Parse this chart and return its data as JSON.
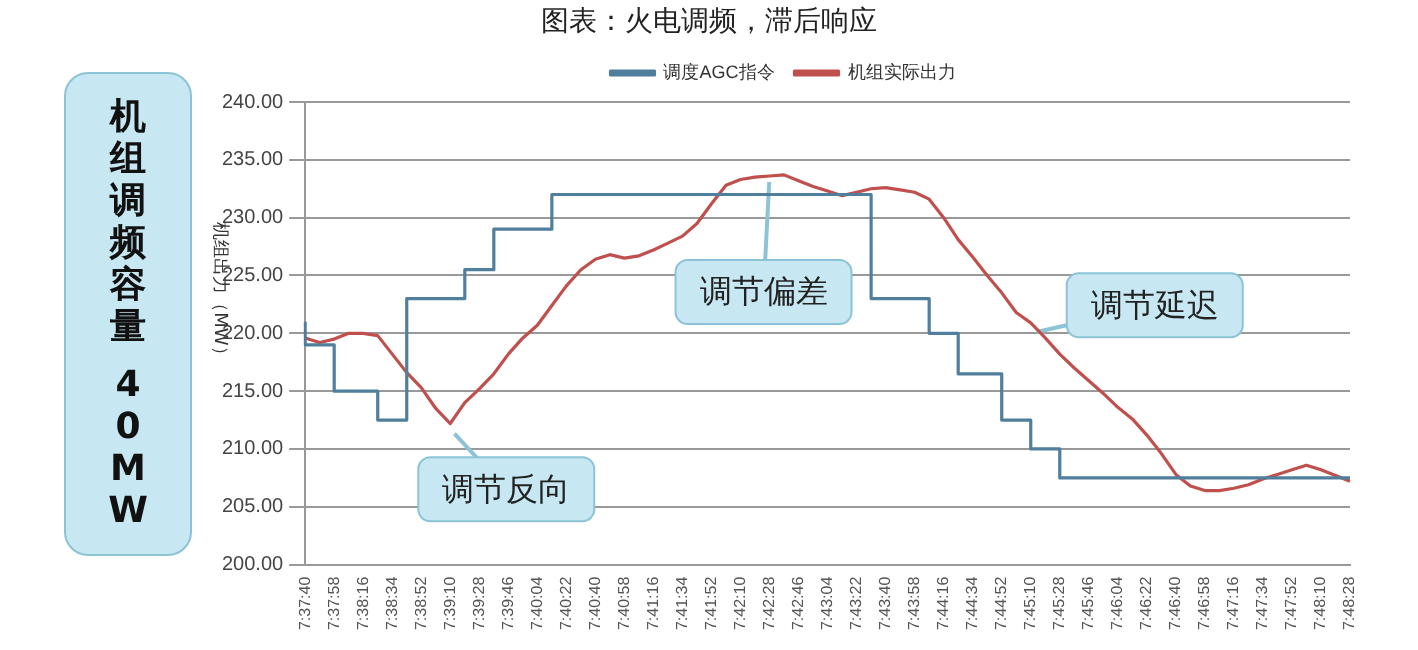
{
  "chart_data": {
    "type": "line",
    "title": "图表：火电调频，滞后响应",
    "ylabel": "机组出力（MW）",
    "categories": [
      "7:37:40",
      null,
      "7:37:58",
      null,
      "7:38:16",
      null,
      "7:38:34",
      null,
      "7:38:52",
      null,
      "7:39:10",
      null,
      "7:39:28",
      null,
      "7:39:46",
      null,
      "7:40:04",
      null,
      "7:40:22",
      null,
      "7:40:40",
      null,
      "7:40:58",
      null,
      "7:41:16",
      null,
      "7:41:34",
      null,
      "7:41:52",
      null,
      "7:42:10",
      null,
      "7:42:28",
      null,
      "7:42:46",
      null,
      "7:43:04",
      null,
      "7:43:22",
      null,
      "7:43:40",
      null,
      "7:43:58",
      null,
      "7:44:16",
      null,
      "7:44:34",
      null,
      "7:44:52",
      null,
      "7:45:10",
      null,
      "7:45:28",
      null,
      "7:45:46",
      null,
      "7:46:04",
      null,
      "7:46:22",
      null,
      "7:46:40",
      null,
      "7:46:58",
      null,
      "7:47:16",
      null,
      "7:47:34",
      null,
      "7:47:52",
      null,
      "7:48:10",
      null,
      "7:48:28"
    ],
    "series": [
      {
        "name": "调度AGC指令",
        "type": "step",
        "color": "#4f7f9c",
        "values": [
          221,
          219,
          219,
          215,
          215,
          215,
          212.5,
          212.5,
          223,
          223,
          223,
          223,
          225.5,
          225.5,
          229,
          229,
          229,
          229,
          232,
          232,
          232,
          232,
          232,
          232,
          232,
          232,
          232,
          232,
          232,
          232,
          232,
          232,
          232,
          232,
          232,
          232,
          232,
          232,
          232,
          232,
          223,
          223,
          223,
          223,
          220,
          220,
          216.5,
          216.5,
          216.5,
          212.5,
          212.5,
          210,
          210,
          207.5,
          207.5,
          207.5,
          207.5,
          207.5,
          207.5,
          207.5,
          207.5,
          207.5,
          207.5,
          207.5,
          207.5,
          207.5,
          207.5,
          207.5,
          207.5,
          207.5,
          207.5,
          207.5,
          207.5
        ]
      },
      {
        "name": "机组实际出力",
        "type": "line",
        "color": "#c0504d",
        "values": [
          219.6,
          219.2,
          219.5,
          220,
          220,
          219.8,
          218.2,
          216.6,
          215.3,
          213.5,
          212.2,
          214,
          215.2,
          216.5,
          218.2,
          219.6,
          220.7,
          222.4,
          224.1,
          225.5,
          226.4,
          226.8,
          226.5,
          226.7,
          227.2,
          227.8,
          228.4,
          229.5,
          231.2,
          232.8,
          233.3,
          233.5,
          233.6,
          233.7,
          233.2,
          232.7,
          232.3,
          231.9,
          232.2,
          232.5,
          232.6,
          232.4,
          232.2,
          231.6,
          230,
          228.1,
          226.6,
          225,
          223.5,
          221.8,
          220.9,
          219.6,
          218.2,
          217,
          215.9,
          214.8,
          213.6,
          212.6,
          211.2,
          209.6,
          207.8,
          206.8,
          206.4,
          206.4,
          206.6,
          206.9,
          207.4,
          207.8,
          208.2,
          208.6,
          208.2,
          207.7,
          207.2
        ]
      }
    ],
    "ylim": [
      200,
      240
    ],
    "yticks": [
      {
        "value": 200,
        "label": "200.00"
      },
      {
        "value": 205,
        "label": "205.00"
      },
      {
        "value": 210,
        "label": "210.00"
      },
      {
        "value": 215,
        "label": "215.00"
      },
      {
        "value": 220,
        "label": "220.00"
      },
      {
        "value": 225,
        "label": "225.00"
      },
      {
        "value": 230,
        "label": "230.00"
      },
      {
        "value": 235,
        "label": "235.00"
      },
      {
        "value": 240,
        "label": "240.00"
      }
    ],
    "grid": "y",
    "legend": "top",
    "marker": "none",
    "line_style": "solid",
    "annotations": [
      "机组调频容量 40MW",
      {
        "text": "调节反向",
        "x": "7:39:10",
        "y": 211.7
      },
      {
        "text": "调节偏差",
        "x": "7:42:28",
        "y": 233.6
      },
      {
        "text": "调节延迟",
        "x": "7:45:10",
        "y": 220
      }
    ]
  }
}
